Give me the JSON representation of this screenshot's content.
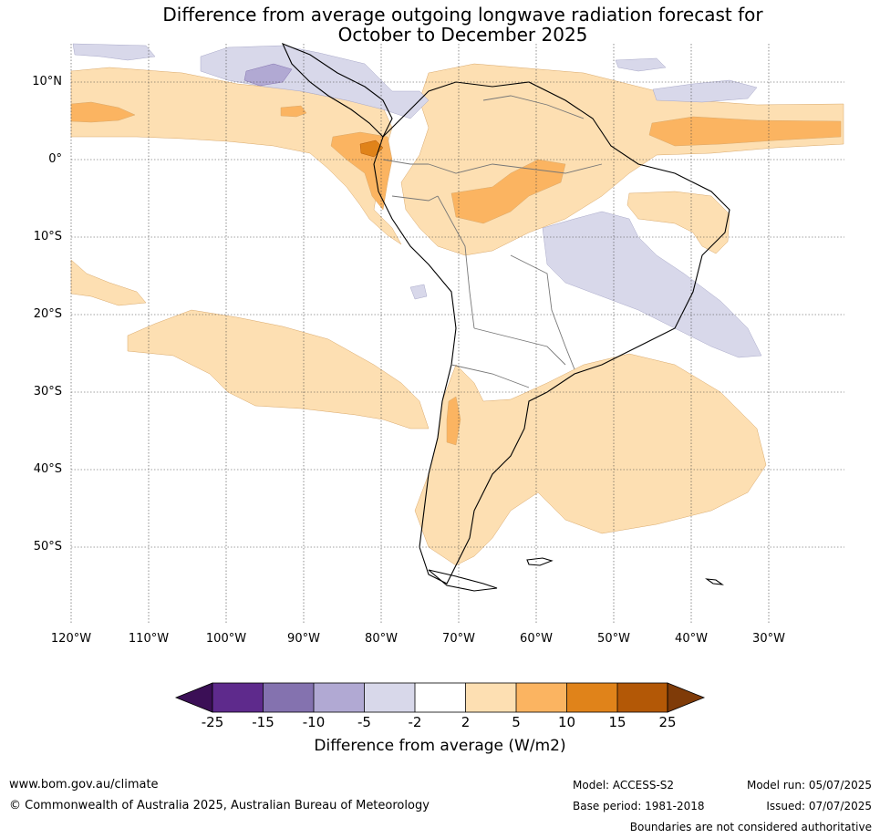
{
  "title": {
    "line1": "Difference from average outgoing longwave radiation forecast for",
    "line2": "October to December 2025"
  },
  "map": {
    "lat_labels": [
      "10°N",
      "0°",
      "10°S",
      "20°S",
      "30°S",
      "40°S",
      "50°S"
    ],
    "lon_labels": [
      "120°W",
      "110°W",
      "100°W",
      "90°W",
      "80°W",
      "70°W",
      "60°W",
      "50°W",
      "40°W",
      "30°W"
    ]
  },
  "colorbar": {
    "title": "Difference from average (W/m2)",
    "ticks": [
      "-25",
      "-15",
      "-10",
      "-5",
      "-2",
      "2",
      "5",
      "10",
      "15",
      "25"
    ],
    "colors": [
      "#3b0f56",
      "#5e2a8c",
      "#8472af",
      "#b1a9d3",
      "#d8d8ea",
      "#ffffff",
      "#fddfb2",
      "#fbb461",
      "#e0831a",
      "#b35806",
      "#7f3b08"
    ]
  },
  "footer": {
    "website": "www.bom.gov.au/climate",
    "copyright": "© Commonwealth of Australia 2025, Australian Bureau of Meteorology",
    "model": "Model: ACCESS-S2",
    "base_period": "Base period: 1981-2018",
    "model_run": "Model run: 05/07/2025",
    "issued": "Issued: 07/07/2025",
    "disclaimer": "Boundaries are not considered authoritative"
  }
}
